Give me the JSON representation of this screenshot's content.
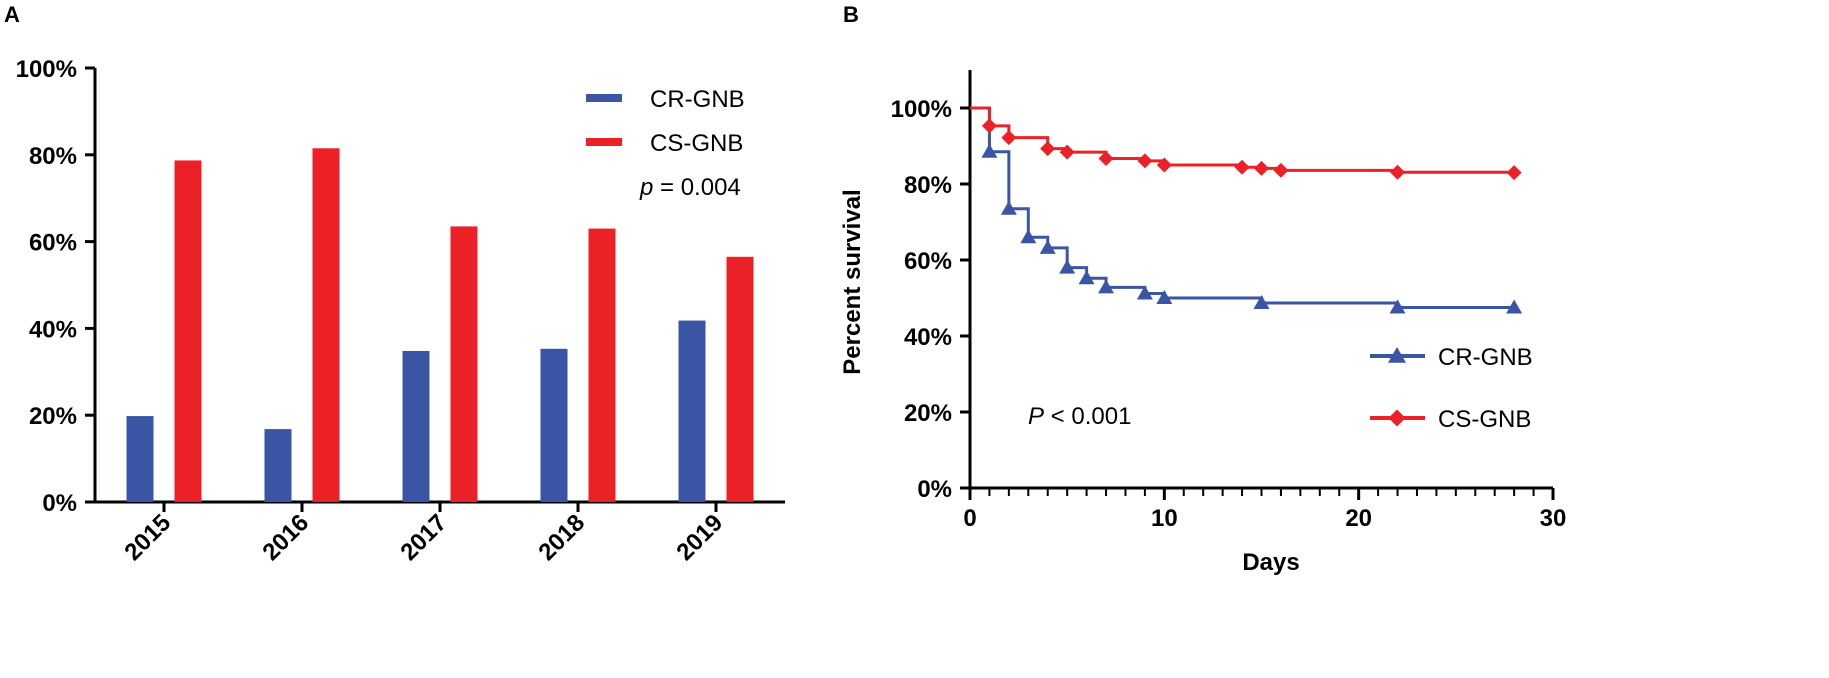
{
  "colors": {
    "cr": "#3a55a4",
    "cs": "#ec2027",
    "axis": "#000000"
  },
  "chart_data": [
    {
      "panel": "A",
      "type": "bar",
      "title": "",
      "xlabel": "",
      "ylabel": "",
      "categories": [
        "2015",
        "2016",
        "2017",
        "2018",
        "2019"
      ],
      "series": [
        {
          "name": "CR-GNB",
          "color": "#3a55a4",
          "values": [
            19.8,
            16.8,
            34.8,
            35.3,
            41.8
          ]
        },
        {
          "name": "CS-GNB",
          "color": "#ec2027",
          "values": [
            78.7,
            81.5,
            63.5,
            63.0,
            56.5
          ]
        }
      ],
      "ylim": [
        0,
        100
      ],
      "yticks": [
        0,
        20,
        40,
        60,
        80,
        100
      ],
      "ytick_labels": [
        "0%",
        "20%",
        "40%",
        "60%",
        "80%",
        "100%"
      ],
      "legend": [
        "CR-GNB",
        "CS-GNB"
      ],
      "legend_position": "top-right",
      "annotation": {
        "italic": "p",
        "text": " = 0.004"
      }
    },
    {
      "panel": "B",
      "type": "line",
      "subtype": "kaplan-meier",
      "title": "",
      "xlabel": "Days",
      "ylabel": "Percent survival",
      "xlim": [
        0,
        30
      ],
      "ylim": [
        0,
        110
      ],
      "xticks": [
        0,
        10,
        20,
        30
      ],
      "xtick_labels": [
        "0",
        "10",
        "20",
        "30"
      ],
      "yticks": [
        0,
        20,
        40,
        60,
        80,
        100
      ],
      "ytick_labels": [
        "0%",
        "20%",
        "40%",
        "60%",
        "80%",
        "100%"
      ],
      "series": [
        {
          "name": "CR-GNB",
          "color": "#3a55a4",
          "marker": "triangle",
          "steps": [
            [
              0,
              100
            ],
            [
              1,
              88.5
            ],
            [
              2,
              73.5
            ],
            [
              3,
              66
            ],
            [
              4,
              63.2
            ],
            [
              5,
              58
            ],
            [
              6,
              55.2
            ],
            [
              7,
              52.8
            ],
            [
              9,
              51.2
            ],
            [
              10,
              50
            ],
            [
              15,
              48.7
            ],
            [
              22,
              47.5
            ],
            [
              28,
              47.5
            ]
          ],
          "markers": [
            [
              1,
              88.5
            ],
            [
              2,
              73.5
            ],
            [
              3,
              66
            ],
            [
              4,
              63.2
            ],
            [
              5,
              58
            ],
            [
              6,
              55.2
            ],
            [
              7,
              52.8
            ],
            [
              9,
              51.2
            ],
            [
              10,
              50
            ],
            [
              15,
              48.7
            ],
            [
              22,
              47.5
            ],
            [
              28,
              47.5
            ]
          ]
        },
        {
          "name": "CS-GNB",
          "color": "#ec2027",
          "marker": "diamond",
          "steps": [
            [
              0,
              100
            ],
            [
              1,
              95.3
            ],
            [
              2,
              92.2
            ],
            [
              4,
              89.3
            ],
            [
              5,
              88.4
            ],
            [
              7,
              86.7
            ],
            [
              9,
              86.1
            ],
            [
              10,
              85
            ],
            [
              14,
              84.4
            ],
            [
              15,
              84.1
            ],
            [
              16,
              83.6
            ],
            [
              22,
              83.1
            ],
            [
              28,
              83
            ]
          ],
          "markers": [
            [
              1,
              95.3
            ],
            [
              2,
              92.2
            ],
            [
              4,
              89.3
            ],
            [
              5,
              88.4
            ],
            [
              7,
              86.7
            ],
            [
              9,
              86.1
            ],
            [
              10,
              85
            ],
            [
              14,
              84.4
            ],
            [
              15,
              84.1
            ],
            [
              16,
              83.6
            ],
            [
              22,
              83.1
            ],
            [
              28,
              83
            ]
          ]
        }
      ],
      "legend": [
        "CR-GNB",
        "CS-GNB"
      ],
      "legend_position": "bottom-right",
      "annotation": {
        "italic": "P",
        "text": " < 0.001"
      }
    }
  ]
}
